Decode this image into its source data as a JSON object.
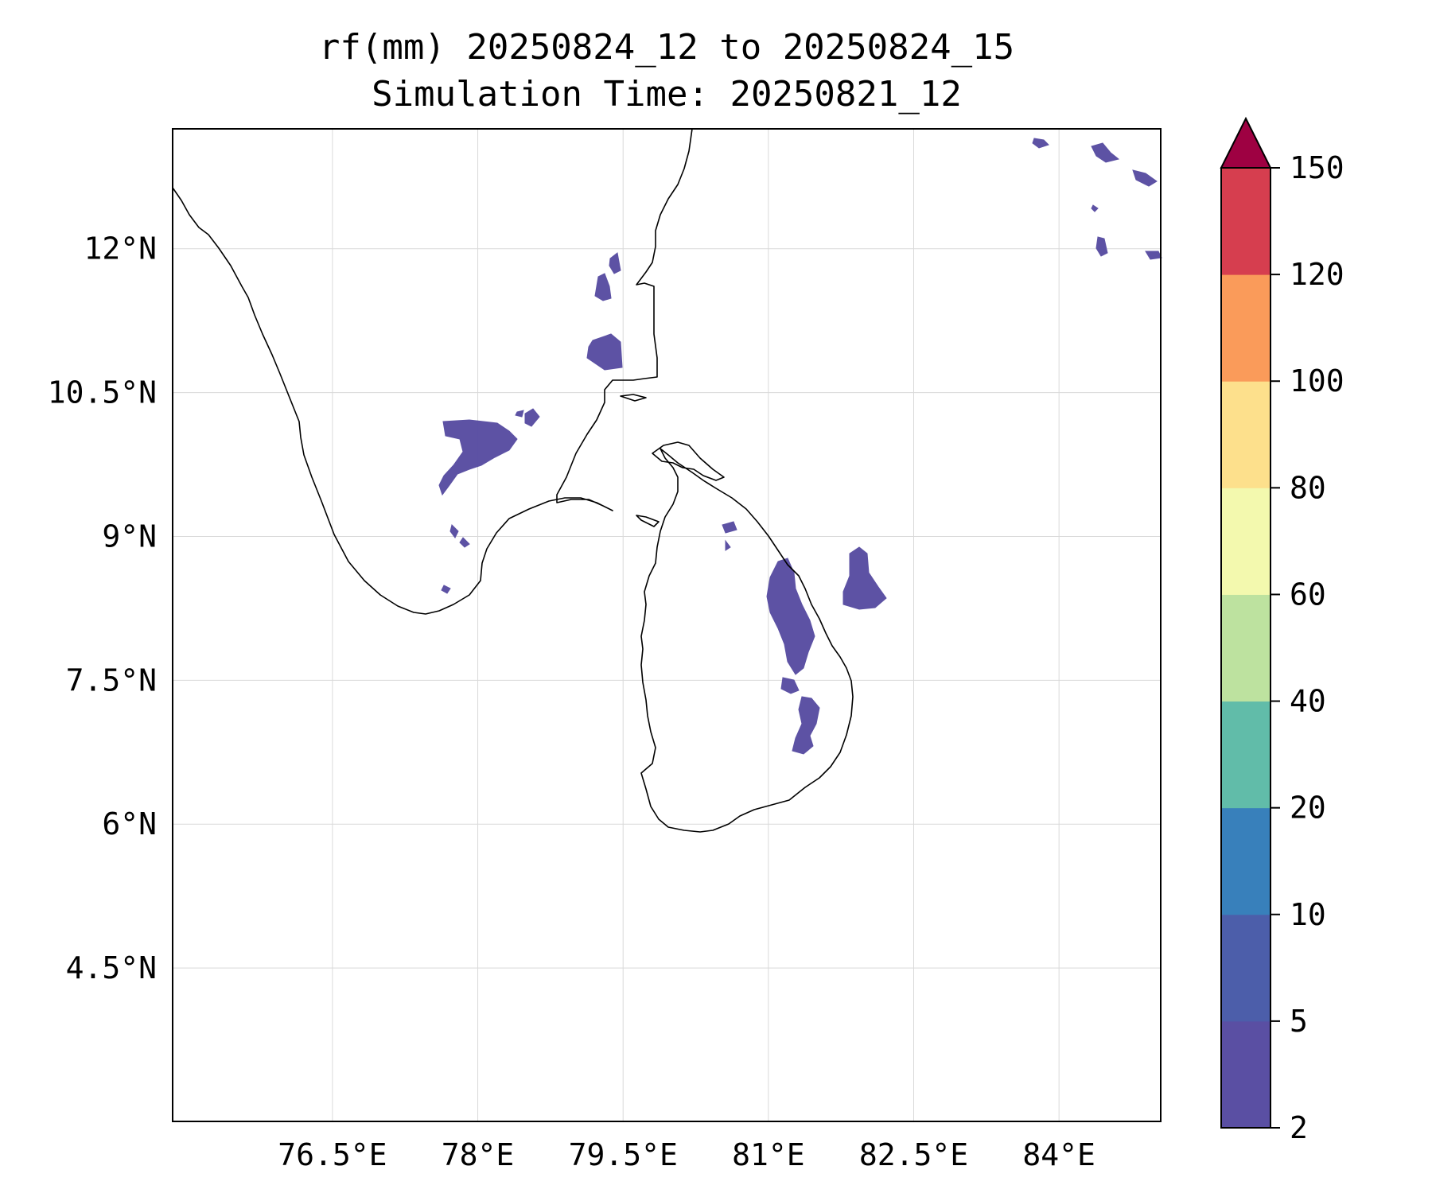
{
  "title": {
    "line1": "rf(mm) 20250824_12 to 20250824_15",
    "line2": "Simulation Time: 20250821_12"
  },
  "map": {
    "lon_range": [
      74.85,
      85.05
    ],
    "lat_range": [
      2.9,
      13.25
    ],
    "lon_ticks": [
      {
        "value": 76.5,
        "label": "76.5°E"
      },
      {
        "value": 78.0,
        "label": "78°E"
      },
      {
        "value": 79.5,
        "label": "79.5°E"
      },
      {
        "value": 81.0,
        "label": "81°E"
      },
      {
        "value": 82.5,
        "label": "82.5°E"
      },
      {
        "value": 84.0,
        "label": "84°E"
      }
    ],
    "lat_ticks": [
      {
        "value": 12.0,
        "label": "12°N"
      },
      {
        "value": 10.5,
        "label": "10.5°N"
      },
      {
        "value": 9.0,
        "label": "9°N"
      },
      {
        "value": 7.5,
        "label": "7.5°N"
      },
      {
        "value": 6.0,
        "label": "6°N"
      },
      {
        "value": 4.5,
        "label": "4.5°N"
      }
    ],
    "grid": true
  },
  "colorbar": {
    "levels": [
      {
        "value": 2,
        "label": "2",
        "color": "#5a4fa3"
      },
      {
        "value": 5,
        "label": "5",
        "color": "#4c5eaa"
      },
      {
        "value": 10,
        "label": "10",
        "color": "#3880bb"
      },
      {
        "value": 20,
        "label": "20",
        "color": "#61bca9"
      },
      {
        "value": 40,
        "label": "40",
        "color": "#bde29f"
      },
      {
        "value": 60,
        "label": "60",
        "color": "#f3f9ae"
      },
      {
        "value": 80,
        "label": "80",
        "color": "#fde08c"
      },
      {
        "value": 100,
        "label": "100",
        "color": "#fa9b5a"
      },
      {
        "value": 120,
        "label": "120",
        "color": "#d63e4f"
      },
      {
        "value": 150,
        "label": "150",
        "color": "#9e0142"
      }
    ],
    "extend": "max",
    "orientation": "vertical",
    "placement": "right"
  }
}
